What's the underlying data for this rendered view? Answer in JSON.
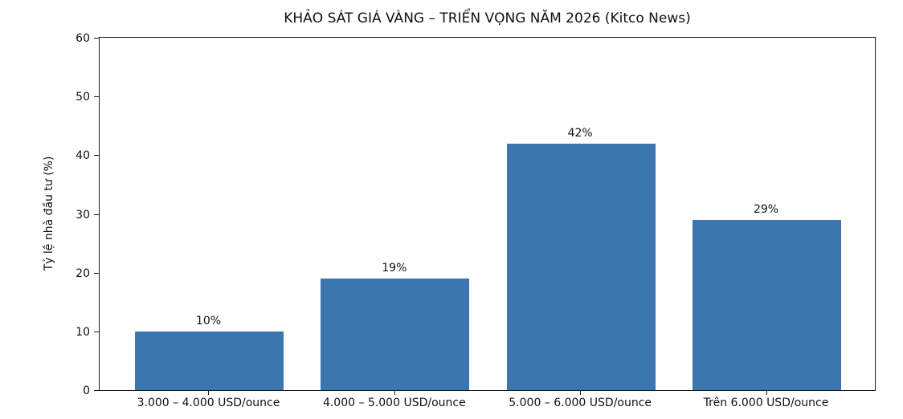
{
  "chart_data": {
    "type": "bar",
    "title": "KHẢO SÁT GIÁ VÀNG – TRIỂN VỌNG NĂM 2026 (Kitco News)",
    "xlabel": "",
    "ylabel": "Tỷ lệ nhà đầu tư (%)",
    "categories": [
      "3.000 – 4.000 USD/ounce",
      "4.000 – 5.000 USD/ounce",
      "5.000 – 6.000 USD/ounce",
      "Trên 6.000 USD/ounce"
    ],
    "values": [
      10,
      19,
      42,
      29
    ],
    "value_labels": [
      "10%",
      "19%",
      "42%",
      "29%"
    ],
    "ylim": [
      0,
      60
    ],
    "yticks": [
      0,
      10,
      20,
      30,
      40,
      50,
      60
    ],
    "bar_color": "#3b76af",
    "axis_color": "#1a1a1a",
    "background_color": "#ffffff",
    "grid": false,
    "legend": null
  }
}
